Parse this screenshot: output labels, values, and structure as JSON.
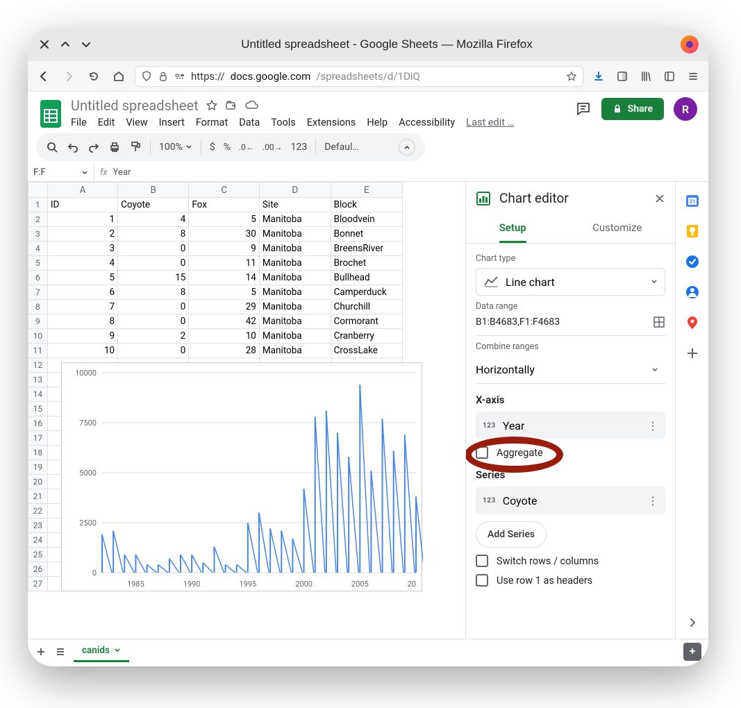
{
  "window": {
    "title": "Untitled spreadsheet - Google Sheets — Mozilla Firefox"
  },
  "url": {
    "proto": "https://",
    "host": "docs.google.com",
    "path": "/spreadsheets/d/1DiQ"
  },
  "doc": {
    "title": "Untitled spreadsheet",
    "avatar_letter": "R",
    "avatar_bg": "#7b1fa2"
  },
  "menus": [
    "File",
    "Edit",
    "View",
    "Insert",
    "Format",
    "Data",
    "Tools",
    "Extensions",
    "Help",
    "Accessibility"
  ],
  "last_edit": "Last edit …",
  "share_label": "Share",
  "toolbar": {
    "zoom": "100%",
    "font": "Defaul…"
  },
  "namebox": "F:F",
  "fx_value": "Year",
  "columns": [
    "A",
    "B",
    "C",
    "D",
    "E"
  ],
  "headers": [
    "ID",
    "Coyote",
    "Fox",
    "Site",
    "Block"
  ],
  "rows": [
    [
      1,
      4,
      5,
      "Manitoba",
      "Bloodvein"
    ],
    [
      2,
      8,
      30,
      "Manitoba",
      "Bonnet"
    ],
    [
      3,
      0,
      9,
      "Manitoba",
      "BreensRiver"
    ],
    [
      4,
      0,
      11,
      "Manitoba",
      "Brochet"
    ],
    [
      5,
      15,
      14,
      "Manitoba",
      "Bullhead"
    ],
    [
      6,
      8,
      5,
      "Manitoba",
      "Camperduck"
    ],
    [
      7,
      0,
      29,
      "Manitoba",
      "Churchill"
    ],
    [
      8,
      0,
      42,
      "Manitoba",
      "Cormorant"
    ],
    [
      9,
      2,
      10,
      "Manitoba",
      "Cranberry"
    ],
    [
      10,
      0,
      28,
      "Manitoba",
      "CrossLake"
    ]
  ],
  "empty_rows_start": 12,
  "empty_rows_end": 27,
  "chart": {
    "type": "line-spike",
    "line_color": "#4a86e8",
    "background_color": "#ffffff",
    "grid_color": "#d9d9d9",
    "axis_label_fontsize": 11,
    "xlim": [
      1982,
      2010
    ],
    "xticks": [
      1985,
      1990,
      1995,
      2000,
      2005
    ],
    "ylim": [
      0,
      10000
    ],
    "yticks": [
      0,
      2500,
      5000,
      7500,
      10000
    ],
    "x": [
      1982,
      1983,
      1984,
      1985,
      1986,
      1987,
      1988,
      1989,
      1990,
      1991,
      1992,
      1993,
      1994,
      1995,
      1996,
      1997,
      1998,
      1999,
      2000,
      2001,
      2002,
      2003,
      2004,
      2005,
      2006,
      2007,
      2008,
      2009,
      2010
    ],
    "y": [
      1900,
      2100,
      900,
      900,
      400,
      400,
      700,
      900,
      900,
      500,
      1300,
      400,
      400,
      2500,
      3000,
      2200,
      2100,
      1700,
      4200,
      7800,
      8100,
      7000,
      5800,
      9400,
      5100,
      7700,
      6100,
      6900,
      3800
    ]
  },
  "editor": {
    "title": "Chart editor",
    "tabs": {
      "setup": "Setup",
      "customize": "Customize"
    },
    "chart_type_label": "Chart type",
    "chart_type_value": "Line chart",
    "data_range_label": "Data range",
    "data_range_value": "B1:B4683,F1:F4683",
    "combine_label": "Combine ranges",
    "combine_value": "Horizontally",
    "xaxis_title": "X-axis",
    "xaxis_value": "Year",
    "aggregate_label": "Aggregate",
    "series_title": "Series",
    "series_value": "Coyote",
    "add_series": "Add Series",
    "switch_label": "Switch rows / columns",
    "headers_label": "Use row 1 as headers"
  },
  "bottom": {
    "tab": "canids"
  },
  "colors": {
    "green": "#188038",
    "blue": "#1a73e8"
  }
}
